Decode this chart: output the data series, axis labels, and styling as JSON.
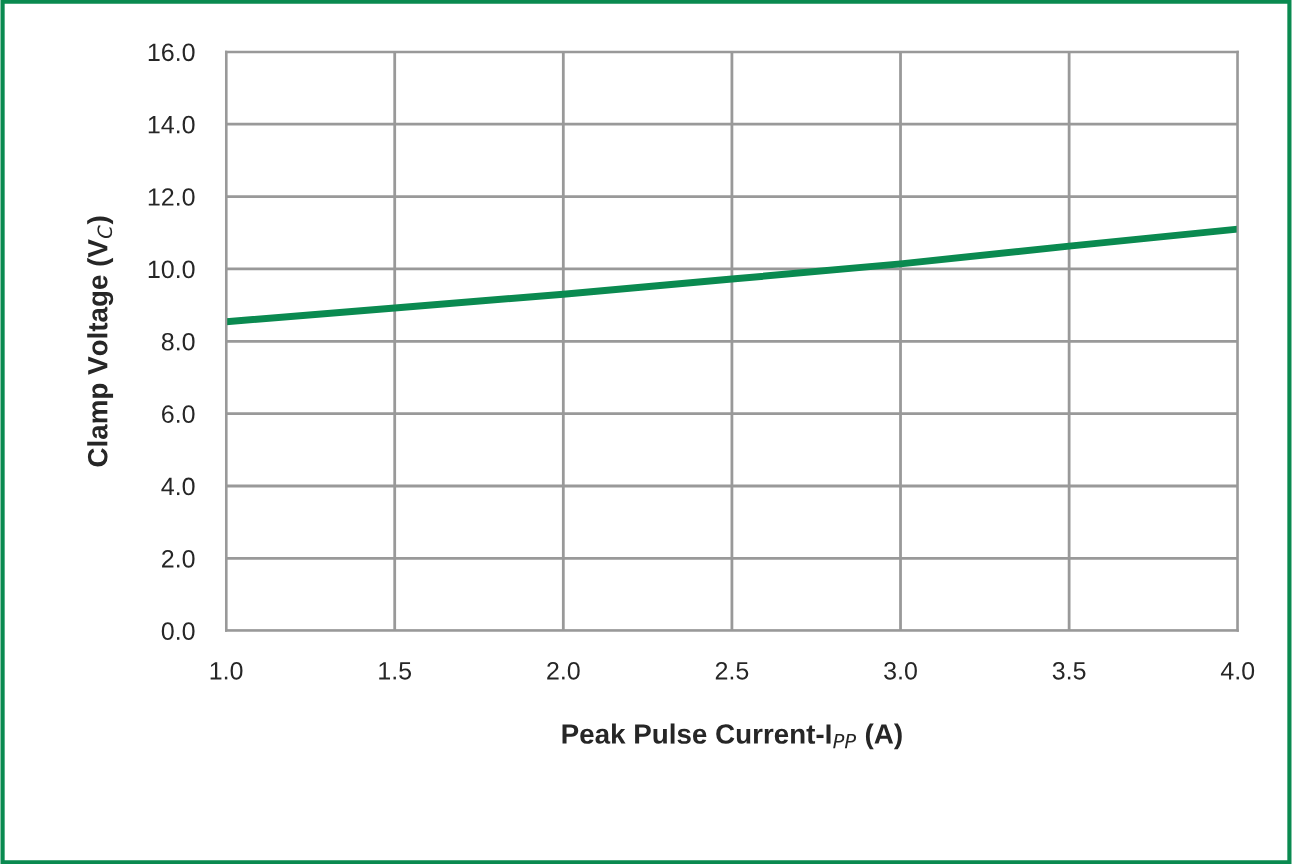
{
  "chart_data": {
    "type": "line",
    "xlabel": "Peak Pulse Current-I$_{PP}$ (A)",
    "ylabel": "Clamp Voltage (V$_{C}$)",
    "x": [
      1.0,
      1.5,
      2.0,
      2.5,
      3.0,
      3.5,
      4.0
    ],
    "series": [
      {
        "color": "#0a8a50",
        "values": [
          8.54,
          8.92,
          9.3,
          9.72,
          10.14,
          10.63,
          11.1
        ]
      }
    ],
    "xlim": [
      1.0,
      4.0
    ],
    "ylim": [
      0.0,
      16.0
    ],
    "xticks": [
      {
        "value": 1.0,
        "label": "1.0"
      },
      {
        "value": 1.5,
        "label": "1.5"
      },
      {
        "value": 2.0,
        "label": "2.0"
      },
      {
        "value": 2.5,
        "label": "2.5"
      },
      {
        "value": 3.0,
        "label": "3.0"
      },
      {
        "value": 3.5,
        "label": "3.5"
      },
      {
        "value": 4.0,
        "label": "4.0"
      }
    ],
    "yticks": [
      {
        "value": 0,
        "label": "0.0"
      },
      {
        "value": 2,
        "label": "2.0"
      },
      {
        "value": 4,
        "label": "4.0"
      },
      {
        "value": 6,
        "label": "6.0"
      },
      {
        "value": 8,
        "label": "8.0"
      },
      {
        "value": 10,
        "label": "10.0"
      },
      {
        "value": 12,
        "label": "12.0"
      },
      {
        "value": 14,
        "label": "14.0"
      },
      {
        "value": 16,
        "label": "16.0"
      }
    ],
    "grid": true,
    "marker": "none",
    "line_style": "solid"
  }
}
